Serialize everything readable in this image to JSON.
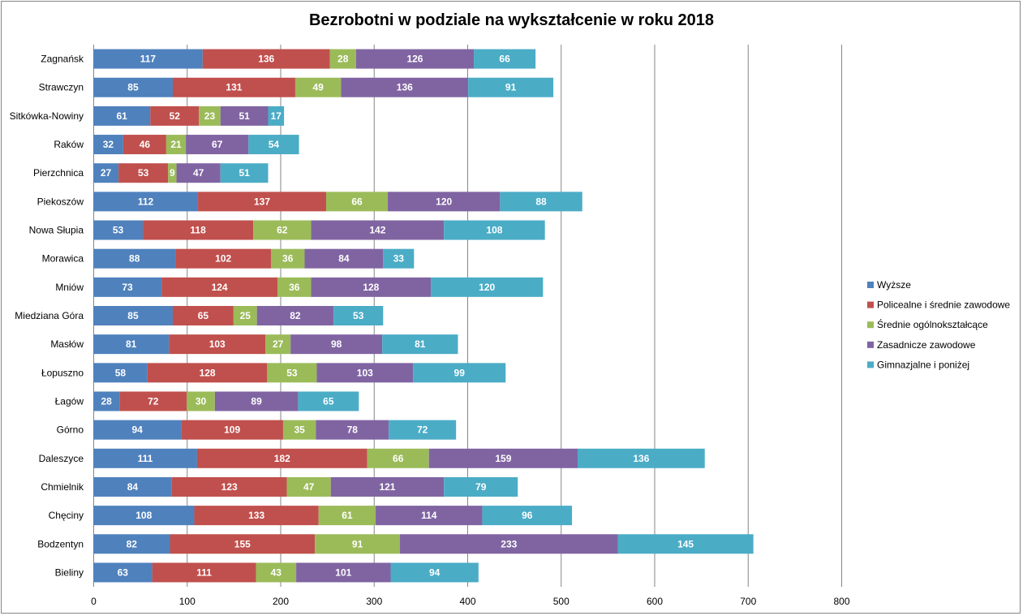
{
  "chart_data": {
    "type": "bar",
    "orientation": "horizontal",
    "stacked": true,
    "title": "Bezrobotni w podziale na wykształcenie w roku 2018",
    "xlabel": "",
    "ylabel": "",
    "xlim": [
      0,
      800
    ],
    "xticks": [
      "0",
      "100",
      "200",
      "300",
      "400",
      "500",
      "600",
      "700",
      "800"
    ],
    "grid": "vertical",
    "legend": "right",
    "data_labels": true,
    "categories": [
      "Zagnańsk",
      "Strawczyn",
      "Sitkówka-Nowiny",
      "Raków",
      "Pierzchnica",
      "Piekoszów",
      "Nowa Słupia",
      "Morawica",
      "Mniów",
      "Miedziana Góra",
      "Masłów",
      "Łopuszno",
      "Łagów",
      "Górno",
      "Daleszyce",
      "Chmielnik",
      "Chęciny",
      "Bodzentyn",
      "Bieliny"
    ],
    "series": [
      {
        "name": "Wyższe",
        "color": "#4F81BD",
        "values": [
          117,
          85,
          61,
          32,
          27,
          112,
          53,
          88,
          73,
          85,
          81,
          58,
          28,
          94,
          111,
          84,
          108,
          82,
          63
        ]
      },
      {
        "name": "Policealne i średnie zawodowe",
        "color": "#C0504D",
        "values": [
          136,
          131,
          52,
          46,
          53,
          137,
          118,
          102,
          124,
          65,
          103,
          128,
          72,
          109,
          182,
          123,
          133,
          155,
          111
        ]
      },
      {
        "name": "Średnie ogólnokształcące",
        "color": "#9BBB59",
        "values": [
          28,
          49,
          23,
          21,
          9,
          66,
          62,
          36,
          36,
          25,
          27,
          53,
          30,
          35,
          66,
          47,
          61,
          91,
          43
        ]
      },
      {
        "name": "Zasadnicze zawodowe",
        "color": "#8064A2",
        "values": [
          126,
          136,
          51,
          67,
          47,
          120,
          142,
          84,
          128,
          82,
          98,
          103,
          89,
          78,
          159,
          121,
          114,
          233,
          101
        ]
      },
      {
        "name": "Gimnazjalne i poniżej",
        "color": "#4BACC6",
        "values": [
          66,
          91,
          17,
          54,
          51,
          88,
          108,
          33,
          120,
          53,
          81,
          99,
          65,
          72,
          136,
          79,
          96,
          145,
          94
        ]
      }
    ]
  }
}
